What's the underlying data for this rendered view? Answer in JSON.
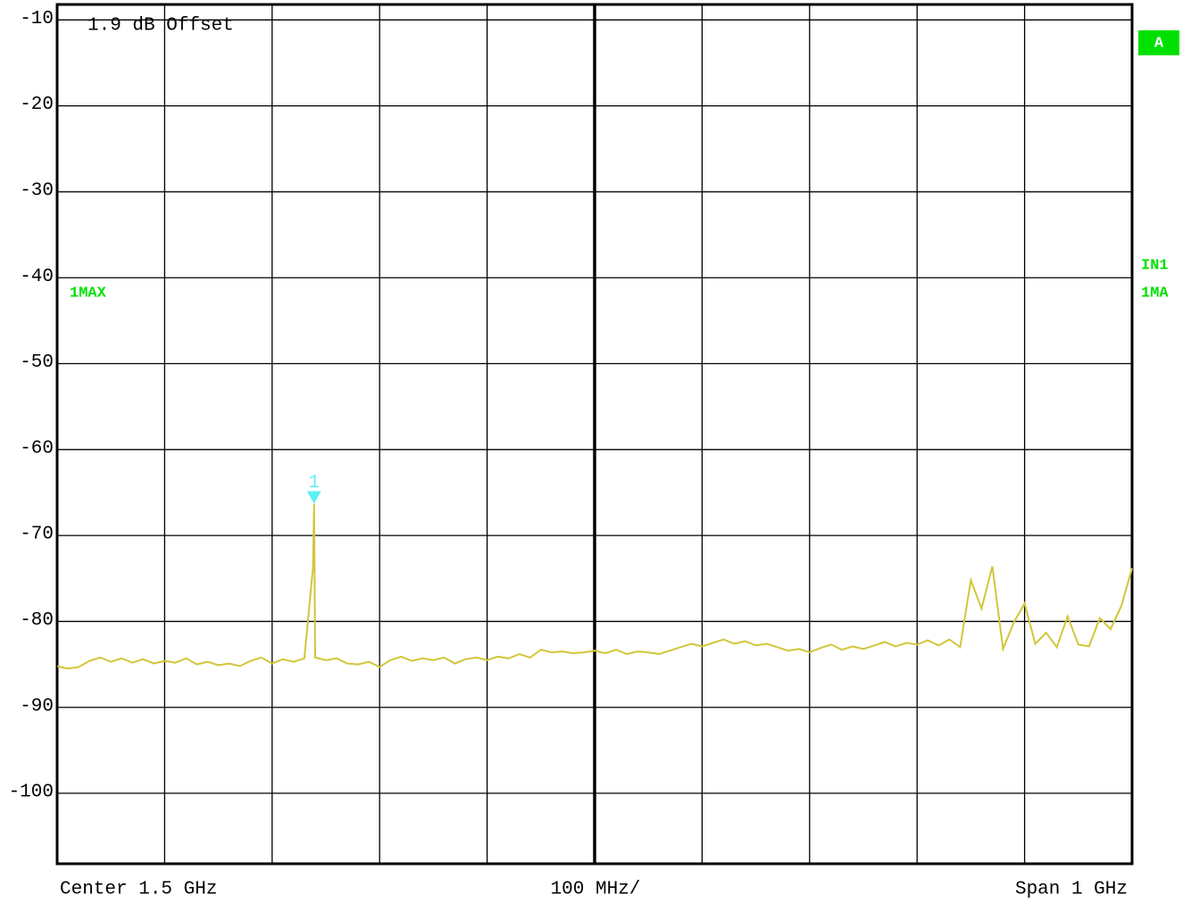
{
  "chart_data": {
    "type": "line",
    "xlim": [
      1000,
      2000
    ],
    "xticks": [
      1000,
      1100,
      1200,
      1300,
      1400,
      1500,
      1600,
      1700,
      1800,
      1900,
      2000
    ],
    "ylim": [
      -108.2,
      -8.2
    ],
    "yticks": [
      -10,
      -20,
      -30,
      -40,
      -50,
      -60,
      -70,
      -80,
      -90,
      -100
    ],
    "grid": true,
    "color": "#d2c63a",
    "x": [
      1000,
      1010,
      1020,
      1030,
      1040,
      1050,
      1060,
      1070,
      1080,
      1090,
      1100,
      1110,
      1120,
      1130,
      1140,
      1150,
      1160,
      1170,
      1180,
      1190,
      1200,
      1210,
      1220,
      1230,
      1238,
      1239,
      1240,
      1250,
      1260,
      1270,
      1280,
      1290,
      1300,
      1310,
      1320,
      1330,
      1340,
      1350,
      1360,
      1370,
      1380,
      1390,
      1400,
      1410,
      1420,
      1430,
      1440,
      1450,
      1460,
      1470,
      1480,
      1490,
      1500,
      1510,
      1520,
      1530,
      1540,
      1550,
      1560,
      1570,
      1580,
      1590,
      1600,
      1610,
      1620,
      1630,
      1640,
      1650,
      1660,
      1670,
      1680,
      1690,
      1700,
      1710,
      1720,
      1730,
      1740,
      1750,
      1760,
      1770,
      1780,
      1790,
      1800,
      1810,
      1820,
      1830,
      1840,
      1850,
      1860,
      1870,
      1880,
      1890,
      1900,
      1910,
      1920,
      1930,
      1940,
      1950,
      1960,
      1970,
      1980,
      1990,
      2000
    ],
    "values": [
      -85.2,
      -85.5,
      -85.3,
      -84.6,
      -84.2,
      -84.7,
      -84.3,
      -84.8,
      -84.4,
      -84.9,
      -84.6,
      -84.8,
      -84.3,
      -85.0,
      -84.7,
      -85.1,
      -84.9,
      -85.2,
      -84.6,
      -84.2,
      -84.9,
      -84.4,
      -84.7,
      -84.3,
      -73.7,
      -66.3,
      -84.2,
      -84.5,
      -84.3,
      -84.9,
      -85.0,
      -84.7,
      -85.3,
      -84.5,
      -84.1,
      -84.6,
      -84.3,
      -84.5,
      -84.2,
      -84.9,
      -84.4,
      -84.2,
      -84.5,
      -84.1,
      -84.3,
      -83.8,
      -84.2,
      -83.3,
      -83.6,
      -83.5,
      -83.7,
      -83.6,
      -83.4,
      -83.7,
      -83.3,
      -83.8,
      -83.5,
      -83.6,
      -83.8,
      -83.4,
      -83.0,
      -82.6,
      -82.9,
      -82.5,
      -82.1,
      -82.6,
      -82.3,
      -82.8,
      -82.6,
      -83.0,
      -83.4,
      -83.2,
      -83.6,
      -83.1,
      -82.7,
      -83.3,
      -82.9,
      -83.2,
      -82.8,
      -82.4,
      -82.9,
      -82.5,
      -82.7,
      -82.2,
      -82.8,
      -82.1,
      -83.0,
      -75.2,
      -78.5,
      -73.6,
      -83.2,
      -80.1,
      -77.9,
      -82.6,
      -81.3,
      -83.0,
      -79.4,
      -82.7,
      -82.9,
      -79.6,
      -80.9,
      -78.2,
      -73.8
    ],
    "marker": {
      "label": "1",
      "x": 1239,
      "value": -66.3,
      "color": "#5ef0f5"
    },
    "annotations": {
      "offset": "1.9 dB Offset",
      "trace_left": "1MAX",
      "status": "A",
      "input": "IN1",
      "trace_right": "1MA",
      "center": "Center 1.5 GHz",
      "scale": "100 MHz/",
      "span": "Span 1 GHz"
    }
  }
}
